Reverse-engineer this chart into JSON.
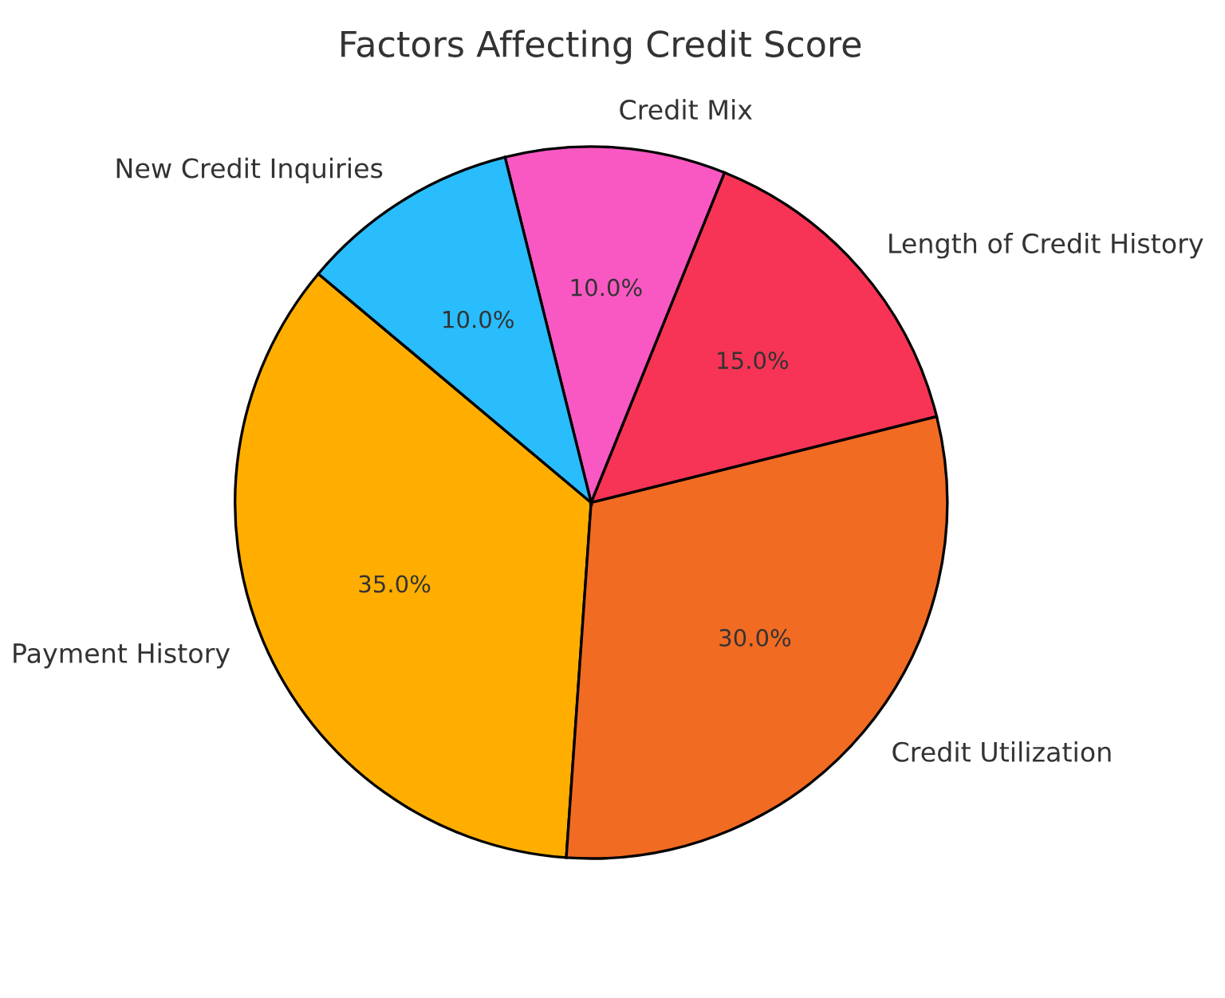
{
  "chart_data": {
    "type": "pie",
    "title": "Factors Affecting Credit Score",
    "categories": [
      "Payment History",
      "Credit Utilization",
      "Length of Credit History",
      "Credit Mix",
      "New Credit Inquiries"
    ],
    "values": [
      35,
      30,
      15,
      10,
      10
    ],
    "value_labels": [
      "35.0%",
      "30.0%",
      "15.0%",
      "10.0%",
      "10.0%"
    ],
    "colors": [
      "#ffae00",
      "#f26b22",
      "#f73455",
      "#f958c3",
      "#29bdfd"
    ]
  }
}
